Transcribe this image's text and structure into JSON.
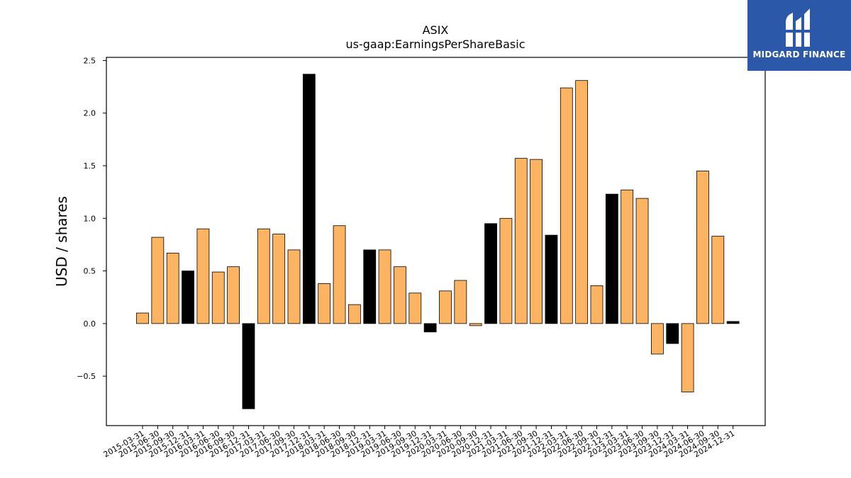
{
  "logo": {
    "text": "MIDGARD FINANCE",
    "background": "#2b58a8"
  },
  "chart_data": {
    "type": "bar",
    "title": "ASIX",
    "subtitle": "us-gaap:EarningsPerShareBasic",
    "ylabel": "USD / shares",
    "xlabel": "",
    "ylim": [
      -0.97,
      2.53
    ],
    "yticks": [
      -0.5,
      0.0,
      0.5,
      1.0,
      1.5,
      2.0,
      2.5
    ],
    "ytick_labels": [
      "−0.5",
      "0.0",
      "0.5",
      "1.0",
      "1.5",
      "2.0",
      "2.5"
    ],
    "grid": false,
    "legend": "none",
    "colors": {
      "default": "#fdb462",
      "highlight": "#000000"
    },
    "categories": [
      "2015-03-31",
      "2015-06-30",
      "2015-09-30",
      "2015-12-31",
      "2016-03-31",
      "2016-06-30",
      "2016-09-30",
      "2016-12-31",
      "2017-03-31",
      "2017-06-30",
      "2017-09-30",
      "2017-12-31",
      "2018-03-31",
      "2018-06-30",
      "2018-09-30",
      "2018-12-31",
      "2019-03-31",
      "2019-06-30",
      "2019-09-30",
      "2019-12-31",
      "2020-03-31",
      "2020-06-30",
      "2020-09-30",
      "2020-12-31",
      "2021-03-31",
      "2021-06-30",
      "2021-09-30",
      "2021-12-31",
      "2022-03-31",
      "2022-06-30",
      "2022-09-30",
      "2022-12-31",
      "2023-03-31",
      "2023-06-30",
      "2023-09-30",
      "2023-12-31",
      "2024-03-31",
      "2024-06-30",
      "2024-09-30",
      "2024-12-31"
    ],
    "values": [
      0.1,
      0.82,
      0.67,
      0.5,
      0.9,
      0.49,
      0.54,
      -0.81,
      0.9,
      0.85,
      0.7,
      2.37,
      0.38,
      0.93,
      0.18,
      0.7,
      0.7,
      0.54,
      0.29,
      -0.08,
      0.31,
      0.41,
      -0.02,
      0.95,
      1.0,
      1.57,
      1.56,
      0.84,
      2.24,
      2.31,
      0.36,
      1.23,
      1.27,
      1.19,
      -0.29,
      -0.19,
      -0.65,
      1.45,
      0.83,
      0.02
    ],
    "highlight": [
      false,
      false,
      false,
      true,
      false,
      false,
      false,
      true,
      false,
      false,
      false,
      true,
      false,
      false,
      false,
      true,
      false,
      false,
      false,
      true,
      false,
      false,
      false,
      true,
      false,
      false,
      false,
      true,
      false,
      false,
      false,
      true,
      false,
      false,
      false,
      true,
      false,
      false,
      false,
      true
    ]
  }
}
